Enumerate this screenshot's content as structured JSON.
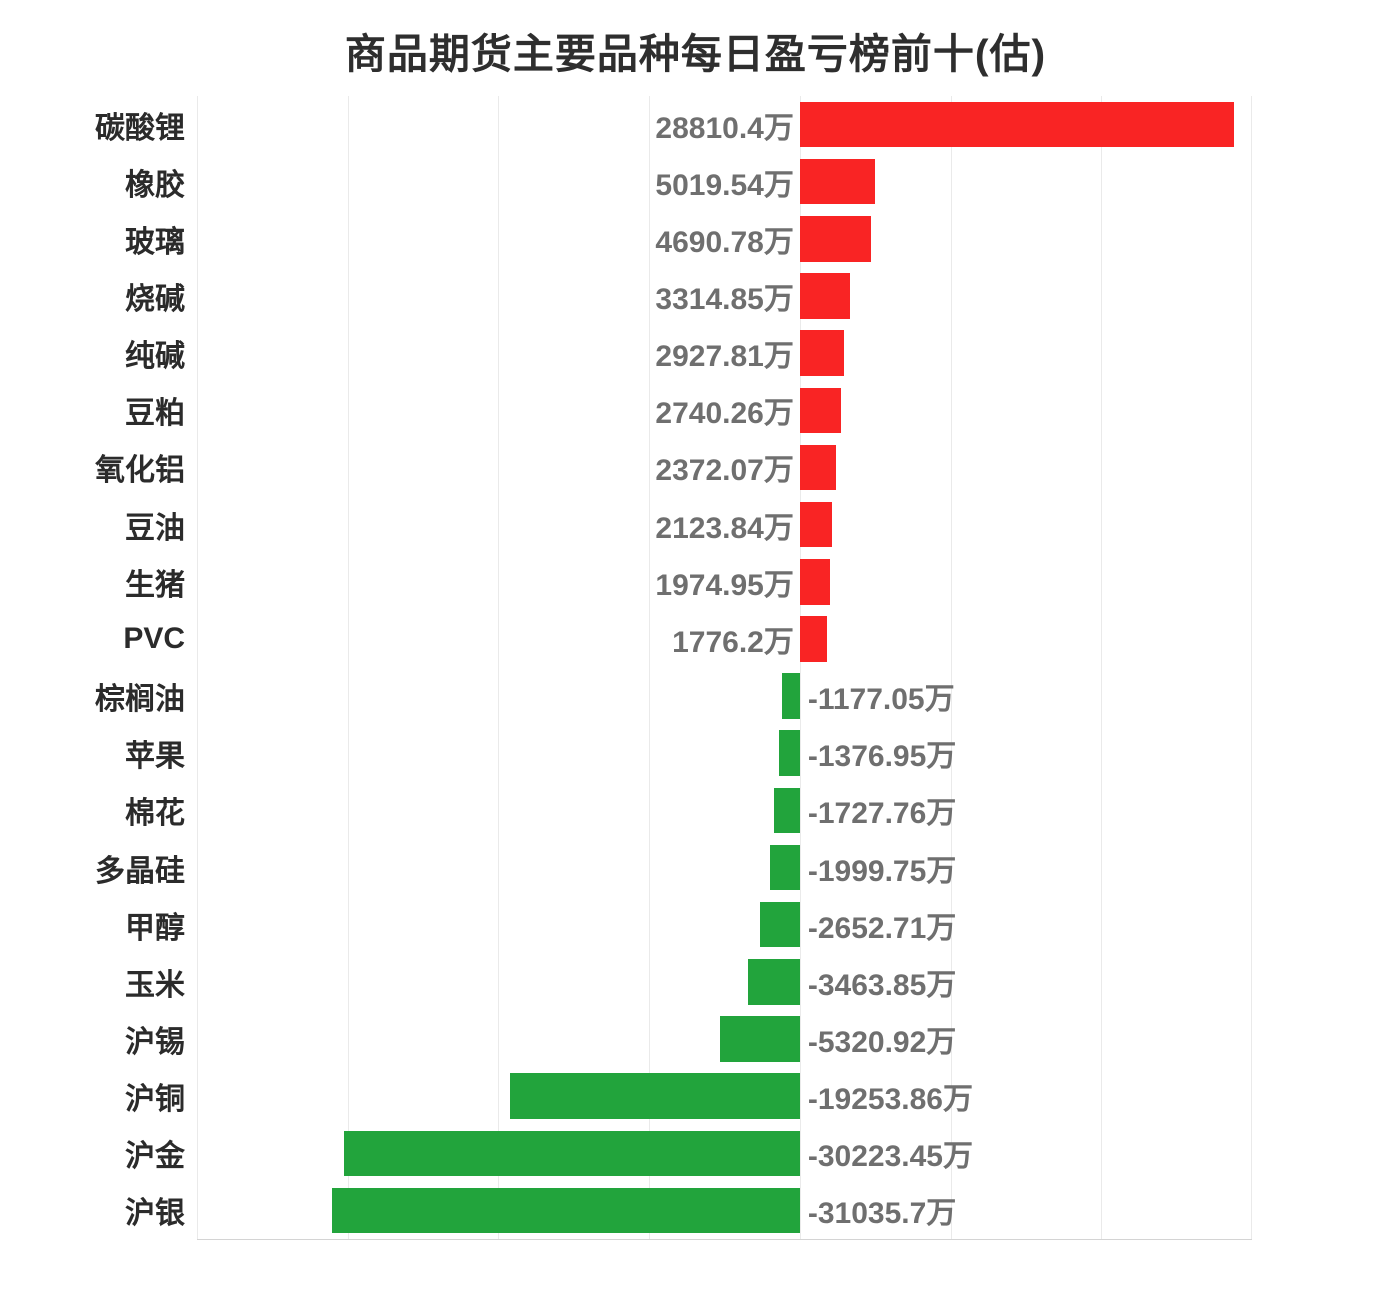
{
  "title": "商品期货主要品种每日盈亏榜前十(估)",
  "colors": {
    "positive_bar": "#f92424",
    "negative_bar": "#22a43c",
    "category_label": "#2b2b2b",
    "value_label": "#6f6f6f",
    "gridline": "#eaeaea",
    "axis_line": "#d4d4d4",
    "background": "#ffffff",
    "title_text": "#2e2e2e"
  },
  "chart_data": {
    "type": "bar",
    "orientation": "horizontal",
    "title": "商品期货主要品种每日盈亏榜前十(估)",
    "unit": "万",
    "xlim": [
      -40000,
      30000
    ],
    "grid_interval": 10000,
    "grid": true,
    "legend": null,
    "xlabel": "",
    "ylabel": "",
    "categories": [
      "碳酸锂",
      "橡胶",
      "玻璃",
      "烧碱",
      "纯碱",
      "豆粕",
      "氧化铝",
      "豆油",
      "生猪",
      "PVC",
      "棕榈油",
      "苹果",
      "棉花",
      "多晶硅",
      "甲醇",
      "玉米",
      "沪锡",
      "沪铜",
      "沪金",
      "沪银"
    ],
    "values": [
      28810.4,
      5019.54,
      4690.78,
      3314.85,
      2927.81,
      2740.26,
      2372.07,
      2123.84,
      1974.95,
      1776.2,
      -1177.05,
      -1376.95,
      -1727.76,
      -1999.75,
      -2652.71,
      -3463.85,
      -5320.92,
      -19253.86,
      -30223.45,
      -31035.7
    ],
    "items": [
      {
        "label": "碳酸锂",
        "value": 28810.4,
        "display": "28810.4万"
      },
      {
        "label": "橡胶",
        "value": 5019.54,
        "display": "5019.54万"
      },
      {
        "label": "玻璃",
        "value": 4690.78,
        "display": "4690.78万"
      },
      {
        "label": "烧碱",
        "value": 3314.85,
        "display": "3314.85万"
      },
      {
        "label": "纯碱",
        "value": 2927.81,
        "display": "2927.81万"
      },
      {
        "label": "豆粕",
        "value": 2740.26,
        "display": "2740.26万"
      },
      {
        "label": "氧化铝",
        "value": 2372.07,
        "display": "2372.07万"
      },
      {
        "label": "豆油",
        "value": 2123.84,
        "display": "2123.84万"
      },
      {
        "label": "生猪",
        "value": 1974.95,
        "display": "1974.95万"
      },
      {
        "label": "PVC",
        "value": 1776.2,
        "display": "1776.2万"
      },
      {
        "label": "棕榈油",
        "value": -1177.05,
        "display": "-1177.05万"
      },
      {
        "label": "苹果",
        "value": -1376.95,
        "display": "-1376.95万"
      },
      {
        "label": "棉花",
        "value": -1727.76,
        "display": "-1727.76万"
      },
      {
        "label": "多晶硅",
        "value": -1999.75,
        "display": "-1999.75万"
      },
      {
        "label": "甲醇",
        "value": -2652.71,
        "display": "-2652.71万"
      },
      {
        "label": "玉米",
        "value": -3463.85,
        "display": "-3463.85万"
      },
      {
        "label": "沪锡",
        "value": -5320.92,
        "display": "-5320.92万"
      },
      {
        "label": "沪铜",
        "value": -19253.86,
        "display": "-19253.86万"
      },
      {
        "label": "沪金",
        "value": -30223.45,
        "display": "-30223.45万"
      },
      {
        "label": "沪银",
        "value": -31035.7,
        "display": "-31035.7万"
      }
    ]
  }
}
